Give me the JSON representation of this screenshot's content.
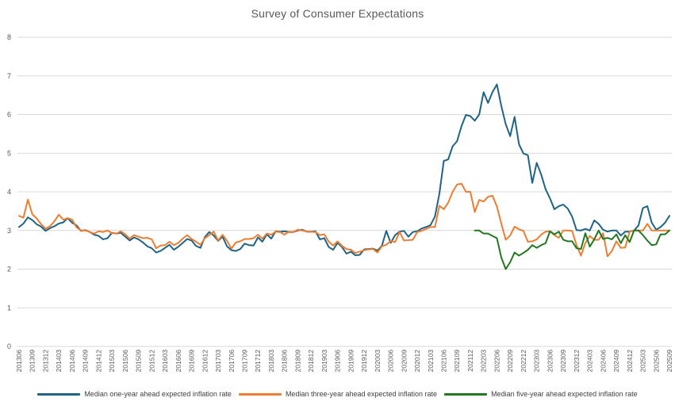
{
  "title": "Survey of Consumer Expectations",
  "colors": {
    "one_year": "#1F6484",
    "three_year": "#ED7D31",
    "five_year": "#217821",
    "gridline": "#D9D9D9",
    "axis_text": "#595959",
    "legend_text": "#404040"
  },
  "chart_data": {
    "type": "line",
    "title": "Survey of Consumer Expectations",
    "x_unit": "month (YYYYMM)",
    "x_start": "201306",
    "x_end": "202509",
    "x_tick_labels": [
      "201306",
      "201309",
      "201312",
      "201403",
      "201406",
      "201409",
      "201412",
      "201503",
      "201506",
      "201509",
      "201512",
      "201603",
      "201606",
      "201609",
      "201612",
      "201703",
      "201706",
      "201709",
      "201712",
      "201803",
      "201806",
      "201809",
      "201812",
      "201903",
      "201906",
      "201909",
      "201912",
      "202003",
      "202006",
      "202009",
      "202012",
      "202103",
      "202106",
      "202109",
      "202112",
      "202203",
      "202206",
      "202209",
      "202212",
      "202303",
      "202306",
      "202309",
      "202312",
      "202403",
      "202406",
      "202409",
      "202412",
      "202503",
      "202506",
      "202509"
    ],
    "ylim": [
      0,
      8
    ],
    "y_ticks": [
      0,
      1,
      2,
      3,
      4,
      5,
      6,
      7,
      8
    ],
    "grid": "horizontal",
    "legend_position": "bottom",
    "n_points": 148,
    "series": [
      {
        "name": "Median one-year ahead expected inflation rate",
        "color": "#1F6484",
        "start_index": 0,
        "values": [
          3.09,
          3.18,
          3.34,
          3.27,
          3.16,
          3.1,
          2.99,
          3.06,
          3.11,
          3.18,
          3.21,
          3.32,
          3.2,
          3.13,
          2.99,
          3.01,
          2.96,
          2.89,
          2.86,
          2.77,
          2.8,
          2.94,
          2.92,
          2.94,
          2.84,
          2.74,
          2.82,
          2.77,
          2.69,
          2.59,
          2.54,
          2.43,
          2.47,
          2.55,
          2.63,
          2.5,
          2.58,
          2.68,
          2.78,
          2.74,
          2.6,
          2.55,
          2.83,
          2.96,
          2.87,
          2.73,
          2.84,
          2.59,
          2.49,
          2.47,
          2.52,
          2.66,
          2.62,
          2.61,
          2.82,
          2.71,
          2.9,
          2.79,
          2.98,
          2.97,
          2.98,
          2.96,
          2.96,
          3.0,
          3.02,
          2.97,
          2.97,
          2.98,
          2.77,
          2.8,
          2.57,
          2.5,
          2.68,
          2.57,
          2.4,
          2.45,
          2.36,
          2.37,
          2.51,
          2.52,
          2.53,
          2.48,
          2.6,
          2.99,
          2.68,
          2.88,
          2.97,
          2.99,
          2.84,
          2.96,
          2.98,
          3.05,
          3.09,
          3.14,
          3.36,
          3.95,
          4.8,
          4.84,
          5.18,
          5.31,
          5.7,
          5.99,
          5.96,
          5.84,
          6.0,
          6.58,
          6.3,
          6.58,
          6.78,
          6.22,
          5.75,
          5.44,
          5.94,
          5.23,
          4.99,
          4.95,
          4.23,
          4.75,
          4.45,
          4.07,
          3.83,
          3.55,
          3.63,
          3.67,
          3.57,
          3.36,
          3.01,
          3.0,
          3.04,
          3.0,
          3.26,
          3.17,
          3.02,
          2.97,
          3.0,
          3.0,
          2.87,
          2.97,
          2.97,
          3.0,
          3.13,
          3.58,
          3.63,
          3.2,
          3.02,
          3.09,
          3.2,
          3.38
        ]
      },
      {
        "name": "Median three-year ahead expected inflation rate",
        "color": "#ED7D31",
        "start_index": 0,
        "values": [
          3.38,
          3.33,
          3.8,
          3.42,
          3.31,
          3.16,
          3.05,
          3.11,
          3.24,
          3.41,
          3.28,
          3.32,
          3.28,
          3.08,
          3.0,
          3.0,
          2.96,
          2.92,
          2.98,
          2.96,
          3.0,
          2.93,
          2.92,
          2.98,
          2.9,
          2.79,
          2.88,
          2.84,
          2.8,
          2.81,
          2.77,
          2.54,
          2.61,
          2.62,
          2.71,
          2.62,
          2.68,
          2.79,
          2.88,
          2.78,
          2.71,
          2.63,
          2.8,
          2.88,
          2.97,
          2.74,
          2.89,
          2.73,
          2.53,
          2.69,
          2.72,
          2.78,
          2.78,
          2.8,
          2.89,
          2.79,
          2.92,
          2.89,
          2.97,
          2.96,
          2.89,
          2.97,
          2.96,
          3.02,
          3.0,
          2.97,
          2.97,
          2.96,
          2.88,
          2.9,
          2.71,
          2.61,
          2.72,
          2.6,
          2.52,
          2.5,
          2.42,
          2.45,
          2.49,
          2.51,
          2.52,
          2.43,
          2.59,
          2.63,
          2.73,
          2.7,
          2.96,
          2.74,
          2.75,
          2.76,
          2.96,
          2.99,
          3.04,
          3.09,
          3.09,
          3.64,
          3.55,
          3.72,
          4.0,
          4.19,
          4.21,
          4.0,
          4.0,
          3.48,
          3.79,
          3.75,
          3.87,
          3.9,
          3.62,
          3.18,
          2.76,
          2.87,
          3.1,
          3.03,
          2.99,
          2.71,
          2.72,
          2.77,
          2.89,
          2.97,
          2.98,
          2.88,
          2.81,
          3.0,
          3.0,
          2.99,
          2.62,
          2.35,
          2.68,
          2.86,
          2.76,
          2.76,
          2.93,
          2.33,
          2.47,
          2.72,
          2.55,
          2.56,
          2.97,
          3.0,
          3.0,
          3.0,
          3.17,
          3.0,
          3.0,
          3.0,
          3.0,
          3.0
        ]
      },
      {
        "name": "Median five-year ahead expected inflation rate",
        "color": "#217821",
        "start_index": 103,
        "values": [
          3.0,
          3.0,
          2.92,
          2.92,
          2.86,
          2.8,
          2.3,
          2.0,
          2.18,
          2.43,
          2.35,
          2.42,
          2.5,
          2.62,
          2.55,
          2.62,
          2.67,
          2.98,
          2.9,
          2.97,
          2.76,
          2.72,
          2.72,
          2.54,
          2.52,
          2.93,
          2.58,
          2.77,
          3.0,
          2.78,
          2.81,
          2.77,
          2.9,
          2.67,
          2.88,
          2.7,
          3.0,
          3.0,
          2.88,
          2.74,
          2.62,
          2.64,
          2.9,
          2.9,
          3.0
        ]
      }
    ]
  }
}
